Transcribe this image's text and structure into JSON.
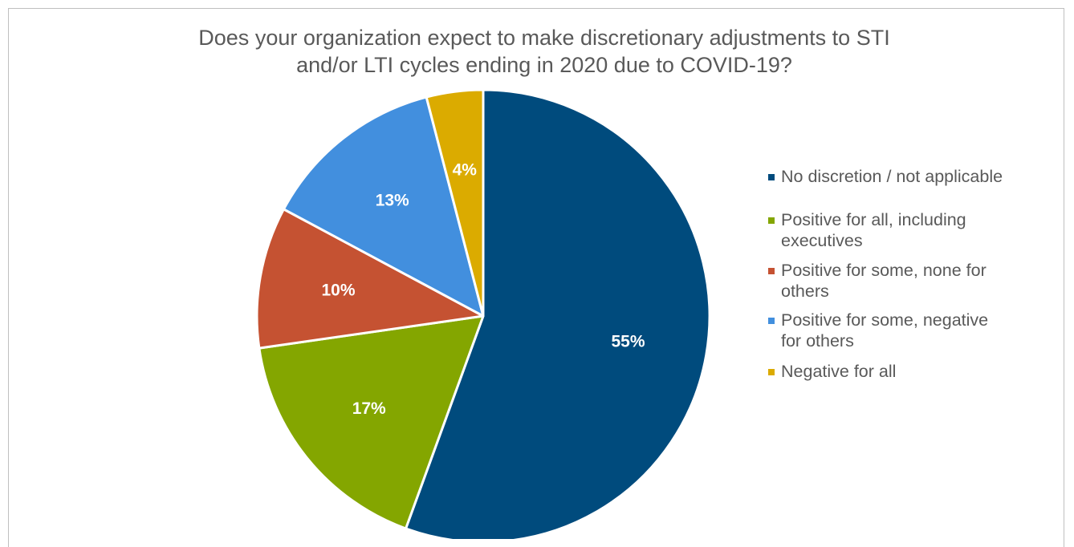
{
  "chart_data": {
    "type": "pie",
    "title_lines": [
      "Does your organization expect to make discretionary adjustments to STI",
      "and/or LTI cycles ending in 2020 due to COVID-19?"
    ],
    "slices": [
      {
        "label": "No discretion / not applicable",
        "value": 55,
        "display": "55%",
        "color": "#004b7d"
      },
      {
        "label": "Positive for all, including executives",
        "value": 17,
        "display": "17%",
        "color": "#84a600"
      },
      {
        "label": "Positive for some, none for others",
        "value": 10,
        "display": "10%",
        "color": "#c55232"
      },
      {
        "label": "Positive for some, negative for others",
        "value": 13,
        "display": "13%",
        "color": "#428fde"
      },
      {
        "label": "Negative for all",
        "value": 4,
        "display": "4%",
        "color": "#dbab00"
      }
    ],
    "start_angle_deg": 0,
    "direction": "clockwise",
    "legend_position": "right"
  },
  "legend": {
    "items": [
      {
        "lines": [
          "No discretion / not applicable"
        ],
        "color": "#004b7d"
      },
      {
        "lines": [
          "Positive for all, including",
          "executives"
        ],
        "color": "#84a600"
      },
      {
        "lines": [
          "Positive for some, none for",
          "others"
        ],
        "color": "#c55232"
      },
      {
        "lines": [
          "Positive for some, negative",
          "for others"
        ],
        "color": "#428fde"
      },
      {
        "lines": [
          "Negative for all"
        ],
        "color": "#dbab00"
      }
    ]
  }
}
